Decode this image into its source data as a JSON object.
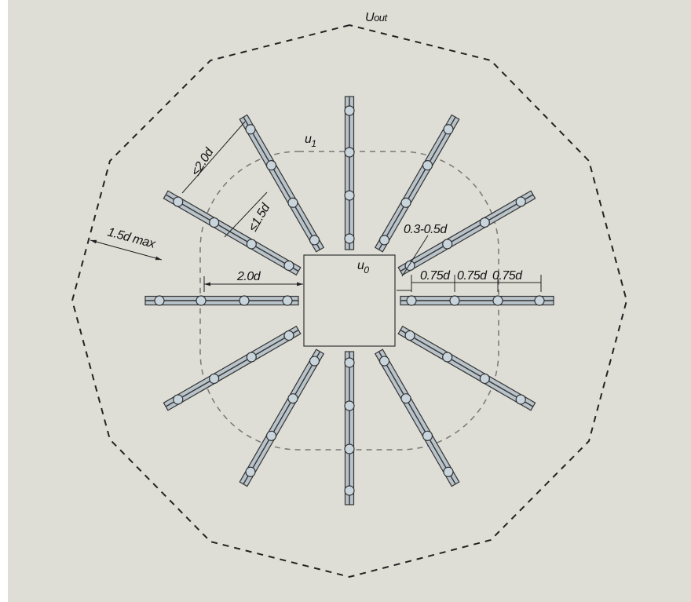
{
  "perimeters": {
    "outer": {
      "label": "U",
      "sub": "out"
    },
    "basic": {
      "label": "u",
      "sub": "1"
    },
    "column": {
      "label": "u",
      "sub": "0"
    }
  },
  "dimensions": {
    "rail_spacing_max": "≤2.0d",
    "first_stud_max": "≤1.5d",
    "outer_max": "1.5d max",
    "first_perimeter": "2.0d",
    "first_stud": "0.3-0.5d",
    "stud_spacing": [
      "0.75d",
      "0.75d",
      "0.75d"
    ]
  }
}
